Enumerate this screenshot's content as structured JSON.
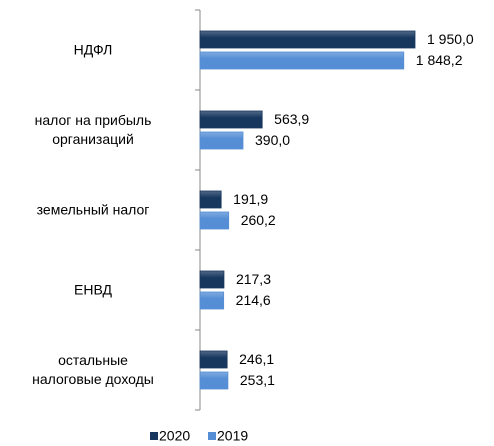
{
  "chart_data": {
    "type": "barh",
    "categories": [
      "НДФЛ",
      "налог на прибыль\nорганизаций",
      "земельный  налог",
      "ЕНВД",
      "остальные\nналоговые  доходы"
    ],
    "series": [
      {
        "name": "2020",
        "color": "#17375e",
        "values": [
          1950.0,
          563.9,
          191.9,
          217.3,
          246.1
        ],
        "value_labels": [
          "1 950,0",
          "563,9",
          "191,9",
          "217,3",
          "246,1"
        ]
      },
      {
        "name": "2019",
        "color": "#558ed5",
        "values": [
          1848.2,
          390.0,
          260.2,
          214.6,
          253.1
        ],
        "value_labels": [
          "1 848,2",
          "390,0",
          "260,2",
          "214,6",
          "253,1"
        ]
      }
    ],
    "legend": "bottom"
  }
}
